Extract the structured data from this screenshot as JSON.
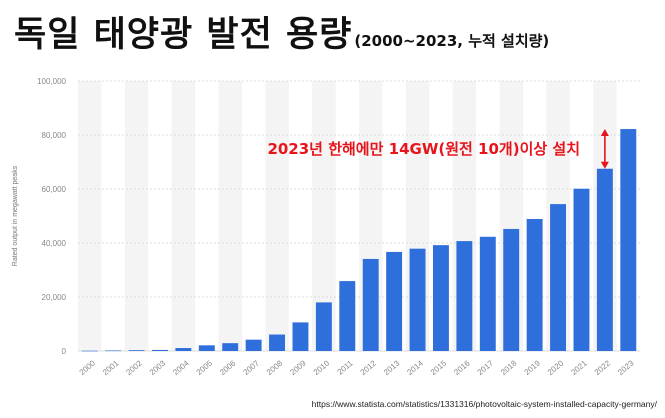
{
  "header": {
    "title": "독일 태양광 발전 용량",
    "subtitle": "(2000~2023, 누적 설치량)"
  },
  "source": "https://www.statista.com/statistics/1331316/photovoltaic-system-installed-capacity-germany/",
  "colors": {
    "bar": "#2f6fdc",
    "grid": "#dcdcdc",
    "band": "#f4f4f4",
    "accent": "#e8141c"
  },
  "chart_data": {
    "type": "bar",
    "title": "",
    "xlabel": "",
    "ylabel": "Rated output in megawatt peaks",
    "ylim": [
      0,
      100000
    ],
    "yticks": [
      0,
      20000,
      40000,
      60000,
      80000,
      100000
    ],
    "ytick_labels": [
      "0",
      "20,000",
      "40,000",
      "60,000",
      "80,000",
      "100,000"
    ],
    "grid": true,
    "categories": [
      "2000",
      "2001",
      "2002",
      "2003",
      "2004",
      "2005",
      "2006",
      "2007",
      "2008",
      "2009",
      "2010",
      "2011",
      "2012",
      "2013",
      "2014",
      "2015",
      "2016",
      "2017",
      "2018",
      "2019",
      "2020",
      "2021",
      "2022",
      "2023"
    ],
    "values": [
      100,
      200,
      300,
      400,
      1100,
      2100,
      2900,
      4200,
      6100,
      10600,
      18000,
      25900,
      34100,
      36700,
      37900,
      39200,
      40700,
      42300,
      45200,
      48900,
      54400,
      60100,
      67500,
      82200
    ],
    "annotation": {
      "text": "2023년 한해에만 14GW(원전 10개)이상 설치",
      "arrow": "2022-2023"
    }
  }
}
